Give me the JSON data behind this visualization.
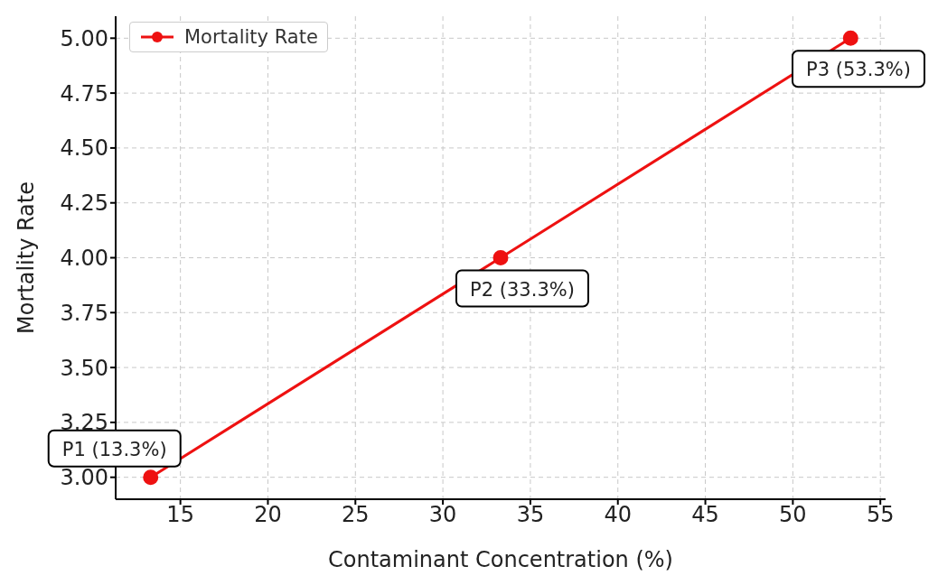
{
  "chart_data": {
    "type": "line",
    "xlabel": "Contaminant Concentration (%)",
    "ylabel": "Mortality Rate",
    "x": [
      13.3,
      33.3,
      53.3
    ],
    "series": [
      {
        "name": "Mortality Rate",
        "color": "#ee1111",
        "values": [
          3,
          4,
          5
        ]
      }
    ],
    "xlim": [
      11.3,
      55.3
    ],
    "xticks": [
      15,
      20,
      25,
      30,
      35,
      40,
      45,
      50,
      55
    ],
    "ylim": [
      2.9,
      5.1
    ],
    "yticks": [
      {
        "value": 3,
        "label": "3.00"
      },
      {
        "value": 3.25,
        "label": "3.25"
      },
      {
        "value": 3.5,
        "label": "3.50"
      },
      {
        "value": 3.75,
        "label": "3.75"
      },
      {
        "value": 4,
        "label": "4.00"
      },
      {
        "value": 4.25,
        "label": "4.25"
      },
      {
        "value": 4.5,
        "label": "4.50"
      },
      {
        "value": 4.75,
        "label": "4.75"
      },
      {
        "value": 5,
        "label": "5.00"
      }
    ],
    "grid": true,
    "legend": "top left",
    "marker": "circle",
    "line_style": "solid",
    "annotations": [
      {
        "text": "P1 (13.3%)",
        "x": 13.3,
        "y": 3
      },
      {
        "text": "P2 (33.3%)",
        "x": 33.3,
        "y": 4
      },
      {
        "text": "P3 (53.3%)",
        "x": 53.3,
        "y": 5
      }
    ]
  }
}
